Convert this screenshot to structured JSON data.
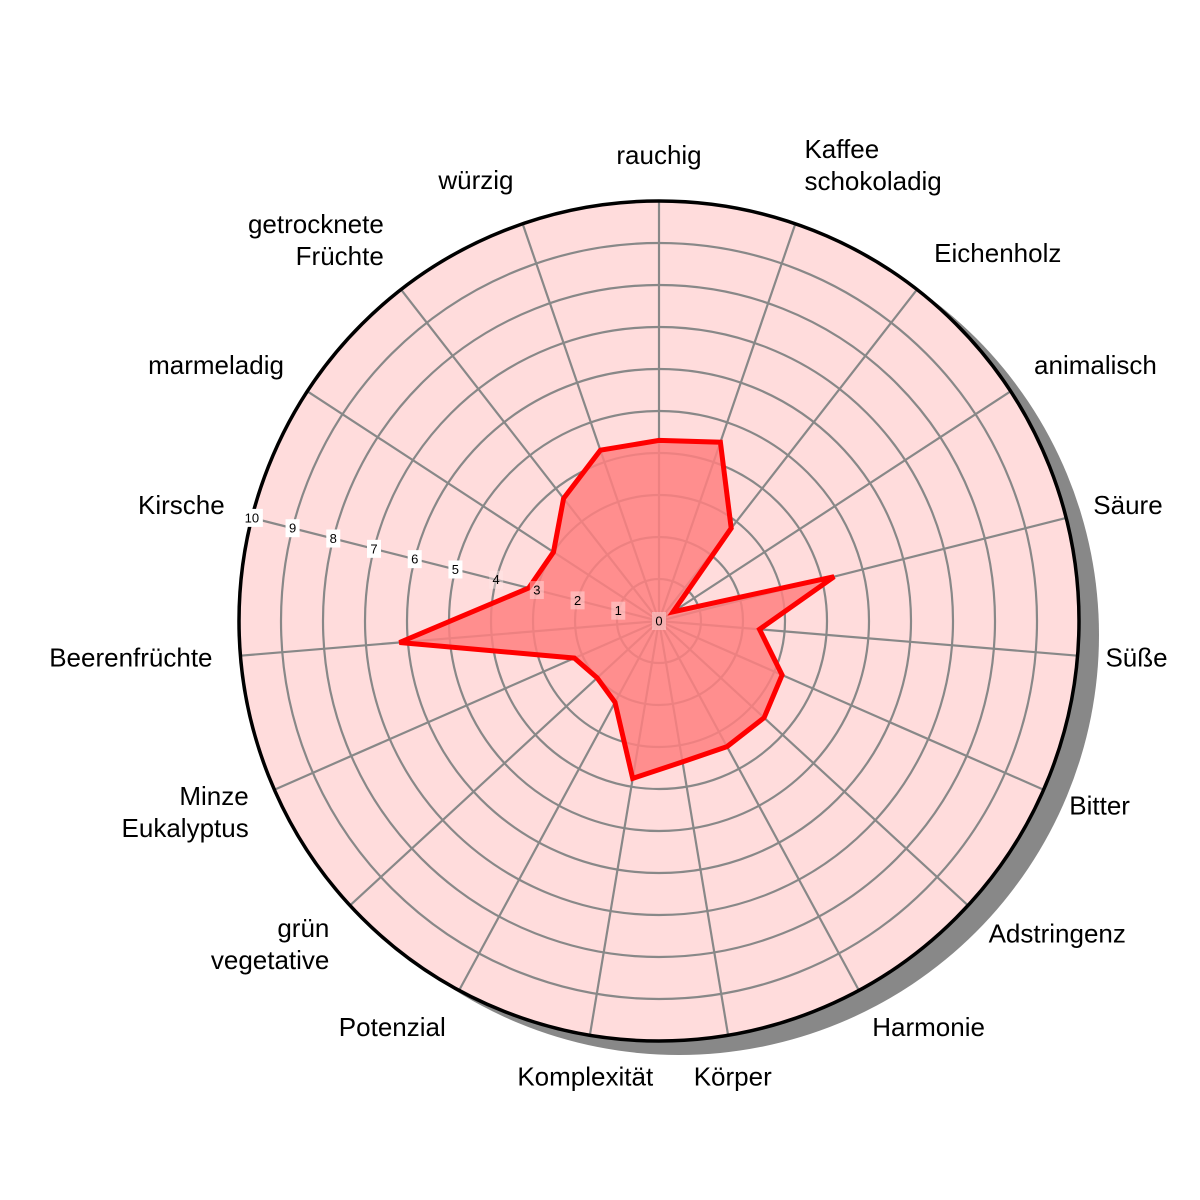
{
  "chart_data": {
    "type": "radar",
    "axes": [
      "rauchig",
      "Kaffee\nschokoladig",
      "Eichenholz",
      "animalisch",
      "Säure",
      "Süße",
      "Bitter",
      "Adstringenz",
      "Harmonie",
      "Körper",
      "Komplexität",
      "Potenzial",
      "grün\nvegetative",
      "Minze\nEukalyptus",
      "Beerenfrüchte",
      "Kirsche",
      "marmeladig",
      "getrocknete\nFrüchte",
      "würzig"
    ],
    "values": [
      4.3,
      4.5,
      2.8,
      0.4,
      4.3,
      2.4,
      3.2,
      3.4,
      3.4,
      3.4,
      3.8,
      2.2,
      2.0,
      2.2,
      6.2,
      3.2,
      3.0,
      3.7,
      4.3
    ],
    "rmin": 0,
    "rmax": 10,
    "ticks": [
      "0",
      "1",
      "2",
      "3",
      "4",
      "5",
      "6",
      "7",
      "8",
      "9",
      "10"
    ],
    "grid": true,
    "colors": {
      "background": "#ffdcdc",
      "fill": "#ff8080",
      "line": "#ff0000",
      "grid": "#888888",
      "outline": "#000000",
      "shadow": "#888888"
    }
  }
}
